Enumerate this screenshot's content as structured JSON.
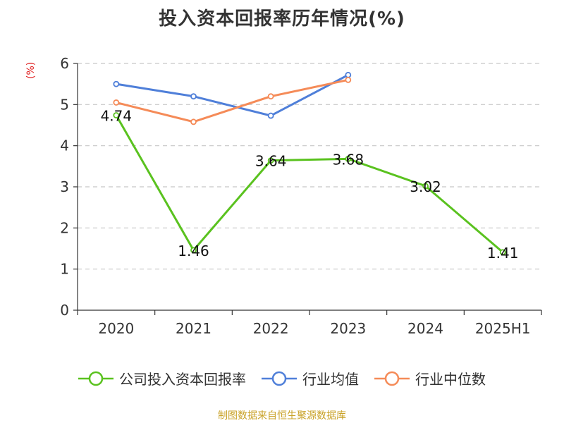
{
  "chart_data": {
    "type": "line",
    "title": "投入资本回报率历年情况(%)",
    "ylabel": "(%)",
    "categories": [
      "2020",
      "2021",
      "2022",
      "2023",
      "2024",
      "2025H1"
    ],
    "ylim": [
      0,
      6
    ],
    "yticks": [
      "0",
      "1",
      "2",
      "3",
      "4",
      "5",
      "6"
    ],
    "grid": true,
    "legend_position": "bottom",
    "series": [
      {
        "name": "公司投入资本回报率",
        "color": "#5ac21f",
        "values": [
          4.74,
          1.46,
          3.64,
          3.68,
          3.02,
          1.41
        ],
        "labels": [
          "4.74",
          "1.46",
          "3.64",
          "3.68",
          "3.02",
          "1.41"
        ]
      },
      {
        "name": "行业均值",
        "color": "#4f7fd9",
        "values": [
          5.5,
          5.2,
          4.73,
          5.72,
          null,
          null
        ]
      },
      {
        "name": "行业中位数",
        "color": "#f58b58",
        "values": [
          5.05,
          4.58,
          5.2,
          5.6,
          null,
          null
        ]
      }
    ]
  },
  "source_note": "制图数据来自恒生聚源数据库"
}
